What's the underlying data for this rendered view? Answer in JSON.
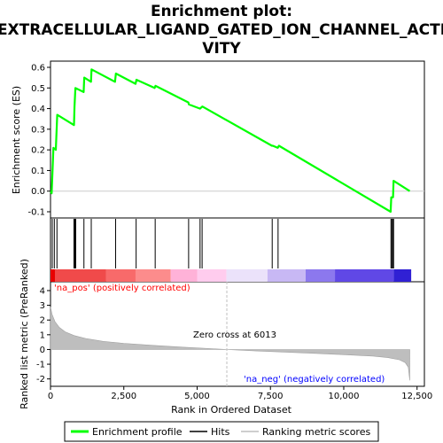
{
  "chart_data": {
    "type": "line",
    "title_lines": [
      "Enrichment plot:",
      "EXTRACELLULAR_LIGAND_GATED_ION_CHANNEL_ACTI",
      "VITY"
    ],
    "colors": {
      "es_line": "#00ff00",
      "hits": "#000000",
      "ranking_fill": "#bebebe",
      "pos_label": "#ff0000",
      "neg_label": "#0000ff",
      "zero_line": "#c0c0c0"
    },
    "es_panel": {
      "ylabel": "Enrichment score (ES)",
      "ylim": [
        -0.13,
        0.63
      ],
      "yticks": [
        -0.1,
        0.0,
        0.1,
        0.2,
        0.3,
        0.4,
        0.5,
        0.6
      ],
      "ytick_labels": [
        "-0.1",
        "0.0",
        "0.1",
        "0.2",
        "0.3",
        "0.4",
        "0.5",
        "0.6"
      ],
      "points": [
        [
          0,
          0.0
        ],
        [
          40,
          -0.01
        ],
        [
          100,
          0.21
        ],
        [
          180,
          0.2
        ],
        [
          230,
          0.37
        ],
        [
          800,
          0.32
        ],
        [
          820,
          0.41
        ],
        [
          850,
          0.5
        ],
        [
          1130,
          0.48
        ],
        [
          1150,
          0.55
        ],
        [
          1380,
          0.53
        ],
        [
          1400,
          0.59
        ],
        [
          2200,
          0.53
        ],
        [
          2230,
          0.57
        ],
        [
          2900,
          0.52
        ],
        [
          2930,
          0.54
        ],
        [
          3550,
          0.5
        ],
        [
          3580,
          0.51
        ],
        [
          4700,
          0.43
        ],
        [
          4720,
          0.42
        ],
        [
          5100,
          0.4
        ],
        [
          5180,
          0.41
        ],
        [
          7550,
          0.22
        ],
        [
          7580,
          0.22
        ],
        [
          7750,
          0.21
        ],
        [
          7790,
          0.22
        ],
        [
          11600,
          -0.1
        ],
        [
          11620,
          -0.03
        ],
        [
          11680,
          -0.03
        ],
        [
          11700,
          0.05
        ],
        [
          12250,
          0.0
        ]
      ]
    },
    "hits": [
      60,
      130,
      220,
      800,
      830,
      860,
      1140,
      1390,
      2220,
      2920,
      3570,
      4710,
      5100,
      5170,
      7560,
      7760,
      11610,
      11640,
      11670,
      11700
    ],
    "heat_bar": {
      "segments": [
        {
          "x0": 0,
          "x1": 1900,
          "color": "#f04a4a"
        },
        {
          "x0": 1900,
          "x1": 2900,
          "color": "#f86a6a"
        },
        {
          "x0": 2900,
          "x1": 4100,
          "color": "#fc8c8c"
        },
        {
          "x0": 4100,
          "x1": 5000,
          "color": "#ffb2d8"
        },
        {
          "x0": 5000,
          "x1": 6000,
          "color": "#ffccee"
        },
        {
          "x0": 6000,
          "x1": 7400,
          "color": "#ebe2fa"
        },
        {
          "x0": 7400,
          "x1": 8700,
          "color": "#c8b8f4"
        },
        {
          "x0": 8700,
          "x1": 9700,
          "color": "#8c78ee"
        },
        {
          "x0": 9700,
          "x1": 11700,
          "color": "#6048e6"
        },
        {
          "x0": 11700,
          "x1": 12300,
          "color": "#3020d4"
        }
      ],
      "dark_start_color": "#e80000"
    },
    "rank_panel": {
      "xlabel": "Rank in Ordered Dataset",
      "ylabel": "Ranked list metric (PreRanked)",
      "xlim": [
        0,
        12750
      ],
      "xticks": [
        0,
        2500,
        5000,
        7500,
        10000,
        12500
      ],
      "xtick_labels": [
        "0",
        "2,500",
        "5,000",
        "7,500",
        "10,000",
        "12,500"
      ],
      "ylim": [
        -2.5,
        4.6
      ],
      "yticks": [
        -2,
        -1,
        0,
        1,
        2,
        3,
        4
      ],
      "ytick_labels": [
        "-2",
        "-1",
        "0",
        "1",
        "2",
        "3",
        "4"
      ],
      "metric_curve": [
        [
          0,
          2.9
        ],
        [
          50,
          2.4
        ],
        [
          150,
          1.9
        ],
        [
          300,
          1.5
        ],
        [
          500,
          1.2
        ],
        [
          800,
          0.95
        ],
        [
          1200,
          0.75
        ],
        [
          1800,
          0.55
        ],
        [
          2500,
          0.42
        ],
        [
          3500,
          0.28
        ],
        [
          4500,
          0.16
        ],
        [
          5500,
          0.06
        ],
        [
          6013,
          0.0
        ],
        [
          7000,
          -0.1
        ],
        [
          8000,
          -0.18
        ],
        [
          9000,
          -0.26
        ],
        [
          10000,
          -0.35
        ],
        [
          11000,
          -0.45
        ],
        [
          11500,
          -0.55
        ],
        [
          11900,
          -0.7
        ],
        [
          12100,
          -0.9
        ],
        [
          12200,
          -1.2
        ],
        [
          12250,
          -2.1
        ]
      ],
      "zero_cross": 6013,
      "zero_cross_label": "Zero cross at 6013",
      "pos_label": "'na_pos' (positively correlated)",
      "neg_label": "'na_neg' (negatively correlated)"
    },
    "legend": {
      "placement": "bottom",
      "entries": [
        {
          "label": "Enrichment profile",
          "style": "line",
          "color": "#00ff00"
        },
        {
          "label": "Hits",
          "style": "line",
          "color": "#000000"
        },
        {
          "label": "Ranking metric scores",
          "style": "line",
          "color": "#bebebe"
        }
      ]
    }
  }
}
